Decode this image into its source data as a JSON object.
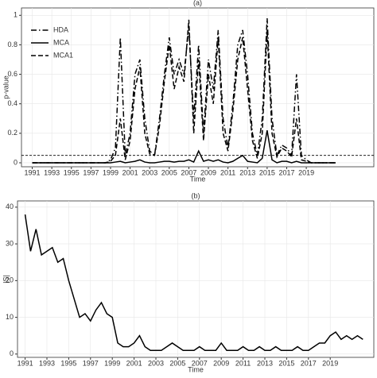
{
  "chart_data": [
    {
      "type": "line",
      "title": "(a)",
      "x_label": "Time",
      "y_label": "p-value",
      "x": [
        1991,
        1991.5,
        1992,
        1992.5,
        1993,
        1993.5,
        1994,
        1994.5,
        1995,
        1995.5,
        1996,
        1996.5,
        1997,
        1997.5,
        1998,
        1998.5,
        1999,
        1999.5,
        2000,
        2000.5,
        2001,
        2001.5,
        2002,
        2002.5,
        2003,
        2003.5,
        2004,
        2004.5,
        2005,
        2005.5,
        2006,
        2006.5,
        2007,
        2007.5,
        2008,
        2008.5,
        2009,
        2009.5,
        2010,
        2010.5,
        2011,
        2011.5,
        2012,
        2012.5,
        2013,
        2013.5,
        2014,
        2014.5,
        2015,
        2015.5,
        2016,
        2016.5,
        2017,
        2017.5,
        2018,
        2018.5,
        2019,
        2019.5,
        2020,
        2020.5,
        2021,
        2021.5,
        2022
      ],
      "series": [
        {
          "name": "HDA",
          "color": "#000000",
          "dash": "7,3,1.5,3",
          "values": [
            0,
            0,
            0,
            0,
            0,
            0,
            0,
            0,
            0,
            0,
            0,
            0,
            0,
            0,
            0,
            0,
            0.02,
            0.1,
            0.85,
            0.05,
            0.2,
            0.6,
            0.7,
            0.3,
            0.08,
            0.05,
            0.3,
            0.6,
            0.85,
            0.6,
            0.7,
            0.6,
            0.92,
            0.3,
            0.8,
            0.2,
            0.7,
            0.5,
            0.9,
            0.3,
            0.1,
            0.4,
            0.8,
            0.9,
            0.6,
            0.2,
            0.05,
            0.3,
            0.98,
            0.3,
            0.05,
            0.12,
            0.1,
            0.05,
            0.6,
            0.05,
            0.02,
            0,
            0,
            0,
            0,
            0,
            0
          ]
        },
        {
          "name": "MCA",
          "color": "#000000",
          "dash": "none",
          "values": [
            0,
            0,
            0,
            0,
            0,
            0,
            0,
            0,
            0,
            0,
            0,
            0,
            0,
            0,
            0,
            0,
            0,
            0.005,
            0.01,
            0,
            0.005,
            0.01,
            0.02,
            0.005,
            0,
            0,
            0.005,
            0.01,
            0.01,
            0.005,
            0.01,
            0.01,
            0.02,
            0.005,
            0.08,
            0.01,
            0.02,
            0.01,
            0.02,
            0.005,
            0,
            0.01,
            0.03,
            0.05,
            0.01,
            0.005,
            0,
            0.03,
            0.22,
            0.02,
            0,
            0.01,
            0.01,
            0,
            0.01,
            0,
            0,
            0,
            0,
            0,
            0,
            0,
            0
          ]
        },
        {
          "name": "MCA1",
          "color": "#000000",
          "dash": "6,3",
          "values": [
            0,
            0,
            0,
            0,
            0,
            0,
            0,
            0,
            0,
            0,
            0,
            0,
            0,
            0,
            0,
            0,
            0.01,
            0.05,
            0.3,
            0.02,
            0.15,
            0.5,
            0.65,
            0.2,
            0.06,
            0.05,
            0.25,
            0.55,
            0.8,
            0.5,
            0.65,
            0.55,
            0.97,
            0.2,
            0.7,
            0.15,
            0.6,
            0.4,
            0.85,
            0.2,
            0.08,
            0.35,
            0.7,
            0.85,
            0.5,
            0.15,
            0.03,
            0.2,
            0.9,
            0.2,
            0.04,
            0.1,
            0.08,
            0.04,
            0.3,
            0.02,
            0.01,
            0,
            0,
            0,
            0,
            0,
            0
          ]
        }
      ],
      "hline": 0.05,
      "xlim": [
        1989.9,
        2025.9
      ],
      "xticks": [
        1991,
        1993,
        1995,
        1997,
        1999,
        2001,
        2003,
        2005,
        2007,
        2009,
        2011,
        2013,
        2015,
        2017,
        2019
      ],
      "ylim": [
        -0.027,
        1.05
      ],
      "yticks": [
        0,
        0.2,
        0.4,
        0.6,
        0.8,
        1
      ],
      "grid": true,
      "legend": "top-left"
    },
    {
      "type": "line",
      "title": "(b)",
      "x_label": "Time",
      "y_label": "|S|",
      "x": [
        1991,
        1991.5,
        1992,
        1992.5,
        1993,
        1993.5,
        1994,
        1994.5,
        1995,
        1995.5,
        1996,
        1996.5,
        1997,
        1997.5,
        1998,
        1998.5,
        1999,
        1999.5,
        2000,
        2000.5,
        2001,
        2001.5,
        2002,
        2002.5,
        2003,
        2003.5,
        2004,
        2004.5,
        2005,
        2005.5,
        2006,
        2006.5,
        2007,
        2007.5,
        2008,
        2008.5,
        2009,
        2009.5,
        2010,
        2010.5,
        2011,
        2011.5,
        2012,
        2012.5,
        2013,
        2013.5,
        2014,
        2014.5,
        2015,
        2015.5,
        2016,
        2016.5,
        2017,
        2017.5,
        2018,
        2018.5,
        2019,
        2019.5,
        2020,
        2020.5,
        2021,
        2021.5,
        2022
      ],
      "series": [
        {
          "color": "#000000",
          "dash": "none",
          "values": [
            38,
            28,
            34,
            27,
            28,
            29,
            25,
            26,
            20,
            15,
            10,
            11,
            9,
            12,
            14,
            11,
            10,
            3,
            2,
            2,
            3,
            5,
            2,
            1,
            1,
            1,
            2,
            3,
            2,
            1,
            1,
            1,
            2,
            1,
            1,
            1,
            3,
            1,
            1,
            1,
            2,
            1,
            1,
            2,
            1,
            1,
            2,
            1,
            1,
            1,
            2,
            1,
            1,
            2,
            3,
            3,
            5,
            6,
            4,
            5,
            4,
            5,
            4
          ]
        }
      ],
      "xlim": [
        1990.3,
        2023
      ],
      "xticks": [
        1991,
        1993,
        1995,
        1997,
        1999,
        2001,
        2003,
        2005,
        2007,
        2009,
        2011,
        2013,
        2015,
        2017,
        2019
      ],
      "ylim": [
        -0.9,
        41.7
      ],
      "yticks": [
        0,
        10,
        20,
        30,
        40
      ],
      "grid": true
    }
  ]
}
